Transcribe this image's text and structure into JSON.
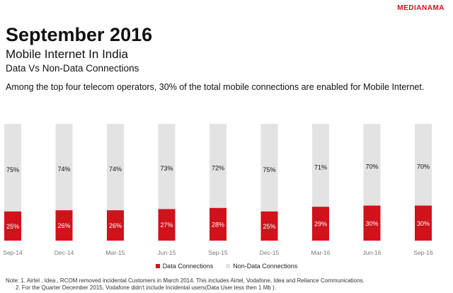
{
  "brand": "MEDIANAMA",
  "title": "September 2016",
  "subtitle": "Mobile Internet In India",
  "subsubtitle": "Data Vs Non-Data Connections",
  "description": "Among the top four telecom operators, 30% of the total mobile connections are enabled for Mobile Internet.",
  "notes": {
    "line1": "Note: 1. Airtel , Idea , RCOM removed incidental Customers in March 2014. This includes Airtel, Vodafone, Idea and Reliance Communications.",
    "line2": "2. For the Quarter December 2015, Vodafone didn't include Incidental users(Data User less then 1 Mb )."
  },
  "colors": {
    "data": "#d0121b",
    "non_data": "#e3e3e3",
    "brand": "#d0121b"
  },
  "chart_data": {
    "type": "bar",
    "stacked": true,
    "percent": true,
    "categories": [
      "Sep-14",
      "Dec-14",
      "Mar-15",
      "Jun-15",
      "Sep-15",
      "Dec-15",
      "Mar-16",
      "Jun-16",
      "Sep-16"
    ],
    "series": [
      {
        "name": "Data Connections",
        "values": [
          25,
          26,
          26,
          27,
          28,
          25,
          29,
          30,
          30
        ],
        "labels": [
          "25%",
          "26%",
          "26%",
          "27%",
          "28%",
          "25%",
          "29%",
          "30%",
          "30%"
        ]
      },
      {
        "name": "Non-Data Connections",
        "values": [
          75,
          74,
          74,
          73,
          72,
          75,
          71,
          70,
          70
        ],
        "labels": [
          "75%",
          "74%",
          "74%",
          "73%",
          "72%",
          "75%",
          "71%",
          "70%",
          "70%"
        ]
      }
    ],
    "ylim": [
      0,
      100
    ],
    "legend": "bottom"
  }
}
